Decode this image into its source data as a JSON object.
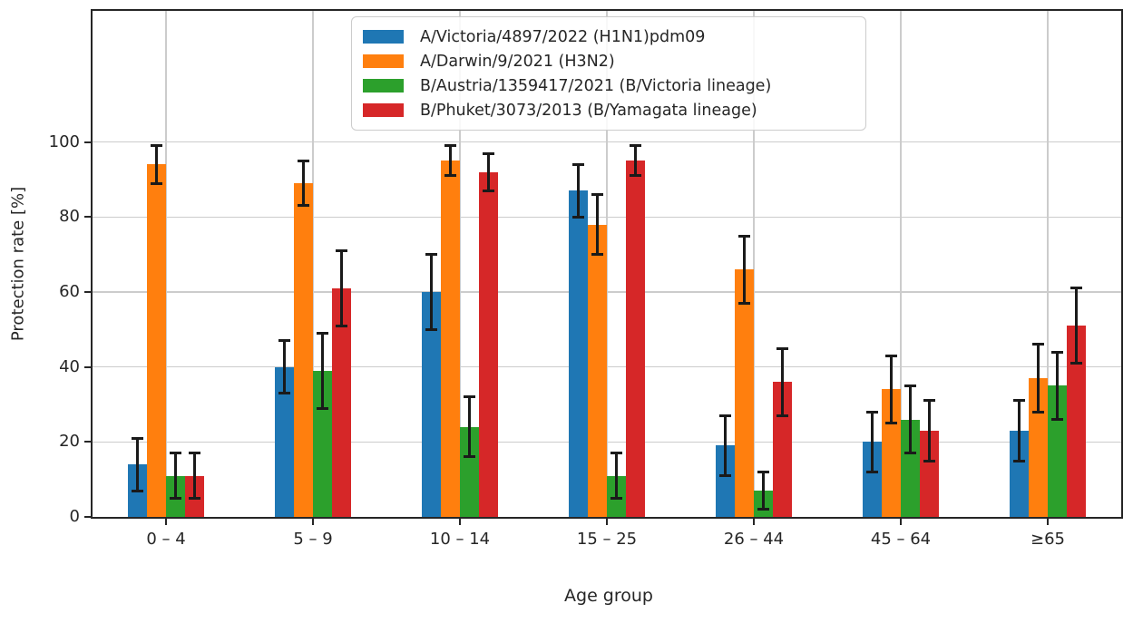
{
  "chart_data": {
    "type": "bar",
    "title": "",
    "xlabel": "Age group",
    "ylabel": "Protection rate [%]",
    "categories": [
      "0 – 4",
      "5 – 9",
      "10 – 14",
      "15 – 25",
      "26 – 44",
      "45 – 64",
      "≥65"
    ],
    "yticks": [
      0,
      20,
      40,
      60,
      80,
      100
    ],
    "ylim": [
      0,
      135
    ],
    "grid": true,
    "error_bars": true,
    "legend_position": "upper center",
    "series": [
      {
        "name": "A/Victoria/4897/2022 (H1N1)pdm09",
        "color": "#1f77b4",
        "values": [
          14,
          40,
          60,
          87,
          19,
          20,
          23
        ],
        "errors": [
          7,
          7,
          10,
          7,
          8,
          8,
          8
        ]
      },
      {
        "name": "A/Darwin/9/2021 (H3N2)",
        "color": "#ff7f0e",
        "values": [
          94,
          89,
          95,
          78,
          66,
          34,
          37
        ],
        "errors": [
          5,
          6,
          4,
          8,
          9,
          9,
          9
        ]
      },
      {
        "name": "B/Austria/1359417/2021 (B/Victoria lineage)",
        "color": "#2ca02c",
        "values": [
          11,
          39,
          24,
          11,
          7,
          26,
          35
        ],
        "errors": [
          6,
          10,
          8,
          6,
          5,
          9,
          9
        ]
      },
      {
        "name": "B/Phuket/3073/2013 (B/Yamagata lineage)",
        "color": "#d62728",
        "values": [
          11,
          61,
          92,
          95,
          36,
          23,
          51
        ],
        "errors": [
          6,
          10,
          5,
          4,
          9,
          8,
          10
        ]
      }
    ],
    "colors": {
      "grid": "#cccccc",
      "spine": "#262626",
      "error_bar": "#1a1a1a",
      "legend_border": "#cccccc"
    }
  }
}
